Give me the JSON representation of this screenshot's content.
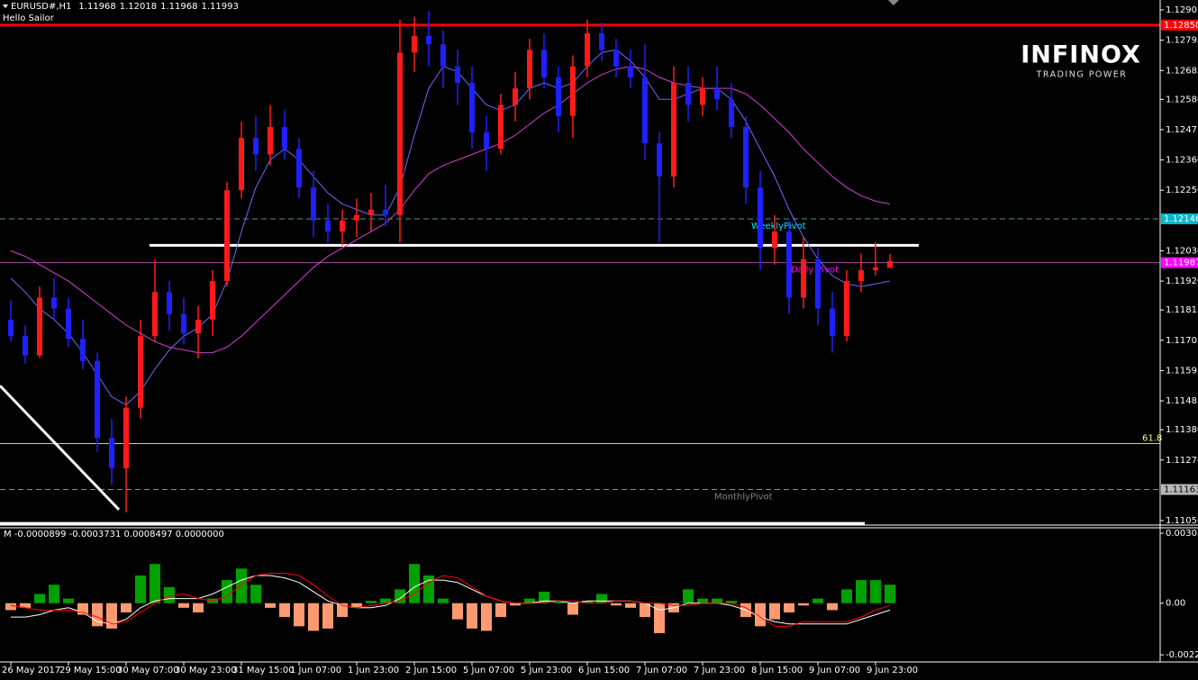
{
  "chart_data": {
    "type": "candlestick",
    "symbol": "EURUSD#,H1",
    "subtitle": "Hello Sailor",
    "logo": "INFINOX",
    "logo_tagline": "TRADING POWER",
    "up_color": "#ff1a1a",
    "down_color": "#2020ff",
    "categories": [
      "26 May 2017",
      null,
      null,
      null,
      "29 May 15:00",
      null,
      null,
      null,
      "30 May 07:00",
      null,
      null,
      null,
      "30 May 23:00",
      null,
      null,
      null,
      "31 May 15:00",
      null,
      null,
      null,
      "1 Jun 07:00",
      null,
      null,
      null,
      "1 Jun 23:00",
      null,
      null,
      null,
      "2 Jun 15:00",
      null,
      null,
      null,
      "5 Jun 07:00",
      null,
      null,
      null,
      "5 Jun 23:00",
      null,
      null,
      null,
      "6 Jun 15:00",
      null,
      null,
      null,
      "7 Jun 07:00",
      null,
      null,
      null,
      "7 Jun 23:00",
      null,
      null,
      null,
      "8 Jun 15:00",
      null,
      null,
      null,
      "9 Jun 07:00",
      null,
      null,
      null,
      "9 Jun 23:00",
      null
    ],
    "open": [
      1.1178,
      1.1172,
      1.1165,
      1.1186,
      1.1182,
      1.1171,
      1.1163,
      1.1135,
      1.1124,
      1.1146,
      1.1172,
      1.1188,
      1.118,
      1.1173,
      1.1178,
      1.1192,
      1.1225,
      1.1244,
      1.1238,
      1.1248,
      1.124,
      1.1226,
      1.1214,
      1.121,
      1.1214,
      1.1216,
      1.1218,
      1.1216,
      1.1275,
      1.1281,
      1.1278,
      1.127,
      1.1264,
      1.1246,
      1.124,
      1.1256,
      1.1262,
      1.1276,
      1.1266,
      1.1252,
      1.127,
      1.1282,
      1.1276,
      1.127,
      1.1266,
      1.1242,
      1.123,
      1.1264,
      1.1256,
      1.1262,
      1.1258,
      1.1248,
      1.1226,
      1.1204,
      1.121,
      1.1186,
      1.12,
      1.1182,
      1.1172,
      1.1192,
      1.1196,
      1.11968
    ],
    "high": [
      1.1185,
      1.1176,
      1.119,
      1.1193,
      1.1186,
      1.1178,
      1.1166,
      1.1142,
      1.115,
      1.1178,
      1.12,
      1.1192,
      1.1186,
      1.1183,
      1.1196,
      1.1228,
      1.125,
      1.1252,
      1.1256,
      1.1254,
      1.1244,
      1.1232,
      1.122,
      1.1218,
      1.1222,
      1.1224,
      1.1227,
      1.1287,
      1.1288,
      1.129,
      1.1283,
      1.1276,
      1.127,
      1.1252,
      1.126,
      1.1268,
      1.128,
      1.1282,
      1.127,
      1.1274,
      1.1287,
      1.1286,
      1.128,
      1.1276,
      1.1278,
      1.1246,
      1.127,
      1.127,
      1.1266,
      1.127,
      1.1264,
      1.1252,
      1.1232,
      1.1216,
      1.1214,
      1.1208,
      1.1204,
      1.1188,
      1.1196,
      1.1202,
      1.1206,
      1.12018
    ],
    "low": [
      1.117,
      1.1162,
      1.1164,
      1.1178,
      1.1168,
      1.116,
      1.113,
      1.1118,
      1.1108,
      1.1142,
      1.117,
      1.1174,
      1.1169,
      1.1164,
      1.1172,
      1.119,
      1.1222,
      1.1232,
      1.1234,
      1.1236,
      1.1222,
      1.1208,
      1.1206,
      1.1205,
      1.1208,
      1.121,
      1.1212,
      1.1206,
      1.1268,
      1.127,
      1.1262,
      1.1256,
      1.124,
      1.1232,
      1.1238,
      1.125,
      1.1258,
      1.1262,
      1.1246,
      1.1244,
      1.1266,
      1.1272,
      1.1266,
      1.1262,
      1.1236,
      1.1206,
      1.1226,
      1.125,
      1.1252,
      1.1254,
      1.1244,
      1.122,
      1.1196,
      1.1198,
      1.118,
      1.1182,
      1.1176,
      1.1166,
      1.117,
      1.1188,
      1.1194,
      1.11968
    ],
    "close": [
      1.1172,
      1.1165,
      1.1186,
      1.1182,
      1.1171,
      1.1163,
      1.1135,
      1.1124,
      1.1146,
      1.1172,
      1.1188,
      1.118,
      1.1173,
      1.1178,
      1.1192,
      1.1225,
      1.1244,
      1.1238,
      1.1248,
      1.124,
      1.1226,
      1.1214,
      1.121,
      1.1214,
      1.1216,
      1.1218,
      1.1216,
      1.1275,
      1.1281,
      1.1278,
      1.127,
      1.1264,
      1.1246,
      1.124,
      1.1256,
      1.1262,
      1.1276,
      1.1266,
      1.1252,
      1.127,
      1.1282,
      1.1276,
      1.127,
      1.1266,
      1.1242,
      1.123,
      1.1264,
      1.1256,
      1.1262,
      1.1258,
      1.1248,
      1.1226,
      1.1204,
      1.121,
      1.1186,
      1.12,
      1.1182,
      1.1172,
      1.1192,
      1.1196,
      1.1197,
      1.11993
    ],
    "moving_averages": [
      {
        "color": "#6a6aff",
        "values": [
          1.1193,
          1.1188,
          1.1182,
          1.1178,
          1.1173,
          1.1166,
          1.1158,
          1.115,
          1.1147,
          1.1152,
          1.116,
          1.1167,
          1.1172,
          1.1175,
          1.118,
          1.1192,
          1.121,
          1.1226,
          1.1236,
          1.124,
          1.1236,
          1.123,
          1.1224,
          1.122,
          1.1218,
          1.1216,
          1.1216,
          1.1226,
          1.1245,
          1.1262,
          1.127,
          1.1268,
          1.1262,
          1.1256,
          1.1254,
          1.1256,
          1.1262,
          1.1264,
          1.1262,
          1.1264,
          1.127,
          1.1275,
          1.1276,
          1.1272,
          1.1266,
          1.1258,
          1.1258,
          1.126,
          1.1262,
          1.1262,
          1.1258,
          1.125,
          1.124,
          1.123,
          1.1218,
          1.1208,
          1.12,
          1.1194,
          1.1191,
          1.119,
          1.1191,
          1.1192
        ]
      },
      {
        "color": "#d040d0",
        "values": [
          1.1203,
          1.1201,
          1.1198,
          1.1195,
          1.1192,
          1.1188,
          1.1184,
          1.118,
          1.1176,
          1.1173,
          1.117,
          1.1168,
          1.1167,
          1.1166,
          1.1166,
          1.1168,
          1.1172,
          1.1177,
          1.1182,
          1.1187,
          1.1192,
          1.1197,
          1.1201,
          1.1204,
          1.1207,
          1.121,
          1.1213,
          1.1218,
          1.1225,
          1.1231,
          1.1234,
          1.1236,
          1.1238,
          1.124,
          1.1242,
          1.1245,
          1.1249,
          1.1253,
          1.1256,
          1.126,
          1.1264,
          1.1267,
          1.1269,
          1.127,
          1.1269,
          1.1266,
          1.1264,
          1.1263,
          1.1262,
          1.1262,
          1.1262,
          1.126,
          1.1256,
          1.1251,
          1.1246,
          1.124,
          1.1235,
          1.123,
          1.1226,
          1.1223,
          1.1221,
          1.122
        ]
      }
    ],
    "ylim": [
      1.11037,
      1.12941
    ],
    "yticks": [
      1.12905,
      1.12795,
      1.12685,
      {
        "value": 1.1258,
        "label": "1.12580"
      },
      1.1247,
      {
        "value": 1.1236,
        "label": "1.12360"
      },
      {
        "value": 1.1225,
        "label": "1.12250"
      },
      {
        "value": 1.1203,
        "label": "1.12030"
      },
      {
        "value": 1.1192,
        "label": "1.11920"
      },
      1.11815,
      1.11705,
      1.11595,
      1.11485,
      {
        "value": 1.1138,
        "label": "1.11380"
      },
      {
        "value": 1.1127,
        "label": "1.11270"
      },
      {
        "value": 1.1105,
        "label": "1.11050"
      }
    ],
    "levels": [
      {
        "value": 1.1285,
        "label": "1.12850",
        "color": "#ff0000",
        "style": "solid",
        "box_color": "#ff0000",
        "text_color": "#ffffff"
      },
      {
        "value": 1.12146,
        "name": "WeeklyPivot",
        "color": "#4f8f9a",
        "style": "dashed",
        "box_color": "#00b8c8",
        "text_color": "#00e5ff"
      },
      {
        "value": 1.11987,
        "name": "Daily Pivot",
        "color": "#a050a0",
        "style": "solid",
        "box_color": "#ff00ff",
        "text_color": "#ff00ff"
      },
      {
        "value": 1.1133,
        "name": "61.8",
        "color": "#c8c8c8",
        "style": "solid",
        "box_color": null,
        "text_color": "#ffff66"
      },
      {
        "value": 1.11163,
        "name": "MonthlyPivot",
        "color": "#909090",
        "style": "dashed",
        "box_color": "#b8b8b8",
        "text_color": "#808080"
      }
    ],
    "trend_lines": [
      {
        "color": "#ffffff",
        "values": [
          1.1205,
          1.1205
        ]
      },
      {
        "color": "#ffffff",
        "values": [
          1.1154,
          1.1109
        ]
      },
      {
        "color": "#ffffff",
        "values": [
          1.1104,
          1.1104
        ]
      }
    ],
    "indicator": {
      "type": "bar",
      "label": "M -0.0000899 -0.0003731 0.0008497 0.0000000",
      "positive_color": "#00a000",
      "negative_color": "#ff9a70",
      "ylim": [
        -0.00255,
        0.00327
      ],
      "yticks": [
        0.003033,
        {
          "value": 0,
          "label": "0.00"
        },
        -0.00224
      ],
      "values": [
        -0.0003,
        -0.0002,
        0.0004,
        0.0008,
        0.0002,
        -0.0005,
        -0.001,
        -0.0011,
        -0.0004,
        0.0012,
        0.0017,
        0.0007,
        -0.0002,
        -0.0004,
        0.0002,
        0.001,
        0.0015,
        0.0008,
        -0.0002,
        -0.0006,
        -0.001,
        -0.0012,
        -0.0011,
        -0.0006,
        -0.0002,
        0.0001,
        0.0002,
        0.0006,
        0.0017,
        0.0012,
        0.0002,
        -0.0007,
        -0.0011,
        -0.0012,
        -0.0006,
        -0.0001,
        0.0002,
        0.0005,
        0.0001,
        -0.0005,
        0.0001,
        0.0004,
        -0.0001,
        -0.0002,
        -0.0006,
        -0.0013,
        -0.0004,
        0.0006,
        0.0002,
        0.0002,
        0.0001,
        -0.0006,
        -0.001,
        -0.0007,
        -0.0004,
        -0.0001,
        0.0002,
        -0.0003,
        0.0006,
        0.001,
        0.001,
        0.0008
      ],
      "lines": [
        {
          "color": "#ffffff",
          "values": [
            -0.0006,
            -0.0006,
            -0.0005,
            -0.0003,
            -0.0002,
            -0.0004,
            -0.0008,
            -0.0009,
            -0.0007,
            -0.0002,
            0.0001,
            0.0002,
            0.0002,
            0.0002,
            0.0004,
            0.0007,
            0.001,
            0.0012,
            0.0012,
            0.0011,
            0.0009,
            0.0005,
            0.0001,
            -0.0001,
            -0.0002,
            -0.0002,
            -0.0001,
            0.0002,
            0.0007,
            0.001,
            0.001,
            0.0009,
            0.0006,
            0.0003,
            0.0001,
            0,
            0,
            0.0001,
            0.0001,
            0,
            0.0001,
            0.0001,
            0.0001,
            0.0001,
            0,
            -0.0003,
            -0.0002,
            0,
            0,
            0,
            -0.0001,
            -0.0003,
            -0.0006,
            -0.0008,
            -0.0009,
            -0.0009,
            -0.0009,
            -0.0009,
            -0.0009,
            -0.0007,
            -0.0005,
            -0.0003
          ]
        },
        {
          "color": "#ff0000",
          "values": [
            -0.0001,
            -0.0002,
            -0.0003,
            -0.0003,
            -0.0003,
            -0.0004,
            -0.0006,
            -0.0009,
            -0.0008,
            -0.0004,
            0,
            0.0003,
            0.0004,
            0.0002,
            0.0001,
            0.0003,
            0.0008,
            0.0012,
            0.0013,
            0.0013,
            0.0012,
            0.0008,
            0.0003,
            -0.0001,
            -0.0002,
            -0.0001,
            0,
            0.0001,
            0.0004,
            0.0009,
            0.0012,
            0.0011,
            0.0007,
            0.0003,
            0.0001,
            0,
            0,
            0,
            0.0001,
            0.0001,
            0,
            0,
            0.0001,
            0.0001,
            0,
            0,
            -0.0001,
            -0.0001,
            0,
            0,
            0,
            -0.0002,
            -0.0006,
            -0.001,
            -0.001,
            -0.0008,
            -0.0008,
            -0.0008,
            -0.0008,
            -0.0006,
            -0.0003,
            -0.0001
          ]
        }
      ]
    }
  }
}
